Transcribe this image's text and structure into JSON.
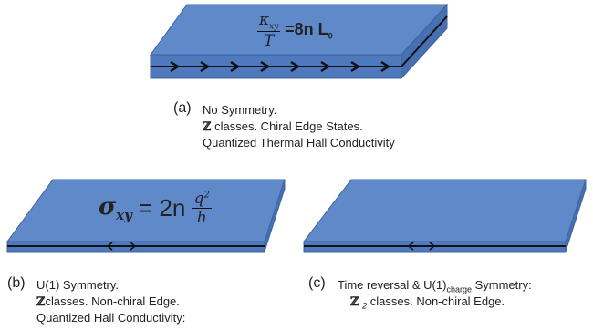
{
  "panels": [
    {
      "label": "(a)",
      "formula": {
        "numerator": "κ",
        "numerator_subscript": "xy",
        "denominator": "T",
        "equals": "=8n L",
        "equals_subscript": "0"
      },
      "caption": {
        "line1": "No Symmetry.",
        "line2_symbol": "ℤ",
        "line2": " classes. Chiral Edge States.",
        "line3": "Quantized Thermal Hall Conductivity"
      }
    },
    {
      "label": "(b)",
      "formula": {
        "symbol": "σ",
        "subscript": "xy",
        "equals": " = 2n",
        "numerator": "q",
        "numerator_superscript": "2",
        "denominator": "h"
      },
      "caption": {
        "line1": "U(1) Symmetry.",
        "line2_symbol": "ℤ",
        "line2": "classes. Non-chiral Edge.",
        "line3": "Quantized Hall Conductivity:"
      }
    },
    {
      "label": "(c)",
      "caption": {
        "line1": "Time reversal & U(1)",
        "line1_subscript": "charge",
        "line1_rest": " Symmetry:",
        "line2_symbol": "ℤ",
        "line2_subscript": "2",
        "line2": " classes. Non-chiral Edge."
      }
    }
  ]
}
